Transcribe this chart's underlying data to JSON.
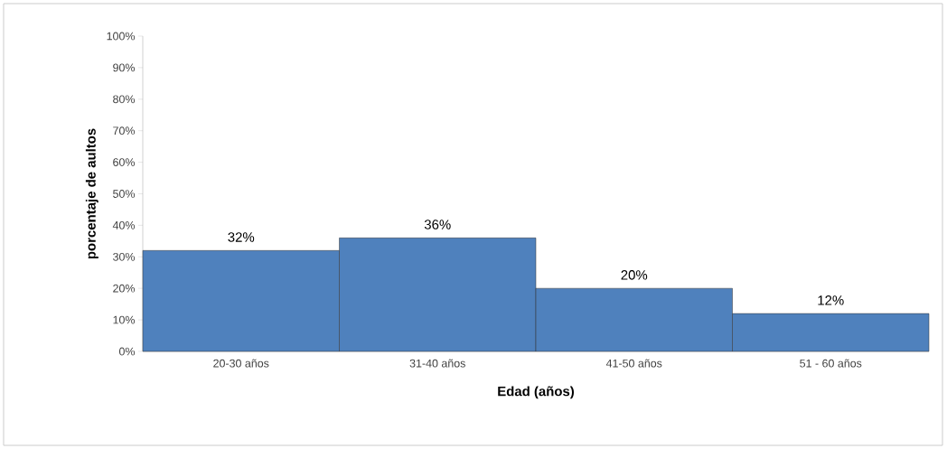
{
  "chart_data": {
    "type": "bar",
    "xlabel": "Edad (años)",
    "ylabel": "porcentaje de aultos",
    "categories": [
      "20-30 años",
      "31-40 años",
      "41-50 años",
      "51 - 60 años"
    ],
    "values": [
      32,
      36,
      20,
      12
    ],
    "value_labels": [
      "32%",
      "36%",
      "20%",
      "12%"
    ],
    "color": "#4f81bd",
    "ylim": [
      0,
      100
    ],
    "yticks": [
      {
        "value": 0,
        "label": "0%"
      },
      {
        "value": 10,
        "label": "10%"
      },
      {
        "value": 20,
        "label": "20%"
      },
      {
        "value": 30,
        "label": "30%"
      },
      {
        "value": 40,
        "label": "40%"
      },
      {
        "value": 50,
        "label": "50%"
      },
      {
        "value": 60,
        "label": "60%"
      },
      {
        "value": 70,
        "label": "70%"
      },
      {
        "value": 80,
        "label": "80%"
      },
      {
        "value": 90,
        "label": "90%"
      },
      {
        "value": 100,
        "label": "100%"
      }
    ]
  }
}
